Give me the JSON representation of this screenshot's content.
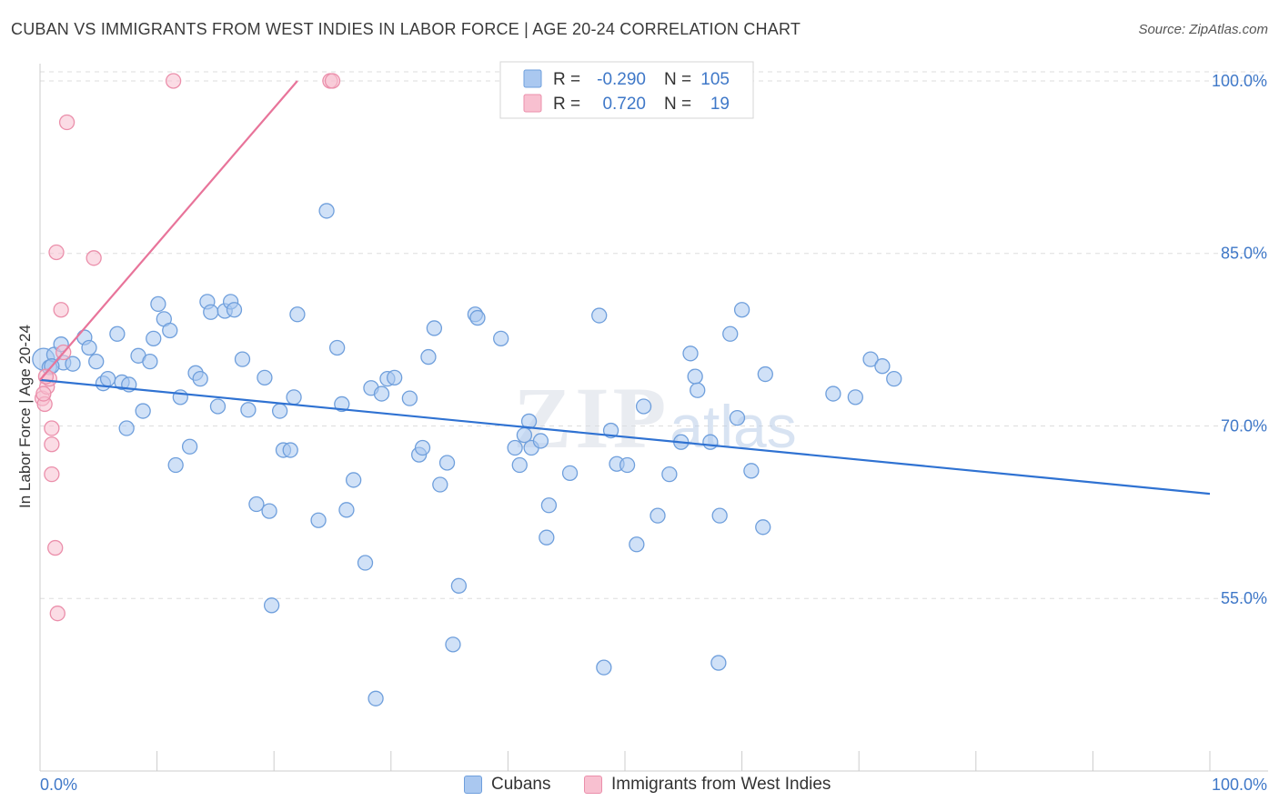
{
  "header": {
    "title": "CUBAN VS IMMIGRANTS FROM WEST INDIES IN LABOR FORCE | AGE 20-24 CORRELATION CHART",
    "source": "Source: ZipAtlas.com"
  },
  "watermark": "ZIPatlas",
  "colors": {
    "blue_fill": "#aac8f0",
    "blue_stroke": "#6f9fdc",
    "blue_line": "#2f72d2",
    "pink_fill": "#f8c0d0",
    "pink_stroke": "#eb8fab",
    "pink_line": "#e8749a",
    "axis_text": "#3f78c8",
    "grid": "#dddddd"
  },
  "legend_stats": [
    {
      "series": "Cubans",
      "r_label": "R =",
      "r_value": "-0.290",
      "n_label": "N =",
      "n_value": "105"
    },
    {
      "series": "Immigrants from West Indies",
      "r_label": "R =",
      "r_value": "0.720",
      "n_label": "N =",
      "n_value": "19"
    }
  ],
  "chart_data": {
    "type": "scatter",
    "title": "CUBAN VS IMMIGRANTS FROM WEST INDIES IN LABOR FORCE | AGE 20-24 CORRELATION CHART",
    "xlabel": "",
    "ylabel": "In Labor Force | Age 20-24",
    "xlim": [
      0,
      100
    ],
    "ylim": [
      40,
      101.5
    ],
    "x_tick_labels": [
      "0.0%",
      "100.0%"
    ],
    "y_ticks": [
      55,
      70,
      85,
      100
    ],
    "y_tick_labels": [
      "55.0%",
      "70.0%",
      "85.0%",
      "100.0%"
    ],
    "series": [
      {
        "name": "Cubans",
        "trendline": {
          "x": [
            0,
            100
          ],
          "y": [
            74.0,
            64.1
          ]
        },
        "points": [
          [
            0.3,
            75.8
          ],
          [
            0.8,
            75.1
          ],
          [
            1.2,
            76.2
          ],
          [
            1.8,
            77.1
          ],
          [
            2.0,
            75.5
          ],
          [
            2.8,
            75.4
          ],
          [
            3.8,
            77.7
          ],
          [
            4.2,
            76.8
          ],
          [
            4.8,
            75.6
          ],
          [
            5.4,
            73.7
          ],
          [
            5.8,
            74.1
          ],
          [
            6.6,
            78.0
          ],
          [
            7.0,
            73.8
          ],
          [
            7.6,
            73.6
          ],
          [
            7.4,
            69.8
          ],
          [
            8.4,
            76.1
          ],
          [
            8.8,
            71.3
          ],
          [
            9.4,
            75.6
          ],
          [
            9.7,
            77.6
          ],
          [
            10.1,
            80.6
          ],
          [
            10.6,
            79.3
          ],
          [
            11.1,
            78.3
          ],
          [
            11.6,
            66.6
          ],
          [
            12.0,
            72.5
          ],
          [
            12.8,
            68.2
          ],
          [
            13.3,
            74.6
          ],
          [
            13.7,
            74.1
          ],
          [
            14.3,
            80.8
          ],
          [
            14.6,
            79.9
          ],
          [
            15.2,
            71.7
          ],
          [
            15.8,
            80.0
          ],
          [
            16.3,
            80.8
          ],
          [
            16.6,
            80.1
          ],
          [
            17.3,
            75.8
          ],
          [
            17.8,
            71.4
          ],
          [
            18.5,
            63.2
          ],
          [
            19.2,
            74.2
          ],
          [
            19.6,
            62.6
          ],
          [
            19.8,
            54.4
          ],
          [
            20.5,
            71.3
          ],
          [
            20.8,
            67.9
          ],
          [
            21.4,
            67.9
          ],
          [
            21.7,
            72.5
          ],
          [
            22.0,
            79.7
          ],
          [
            23.8,
            61.8
          ],
          [
            24.5,
            88.7
          ],
          [
            25.4,
            76.8
          ],
          [
            25.8,
            71.9
          ],
          [
            26.2,
            62.7
          ],
          [
            26.8,
            65.3
          ],
          [
            27.8,
            58.1
          ],
          [
            28.3,
            73.3
          ],
          [
            28.7,
            46.3
          ],
          [
            29.2,
            72.8
          ],
          [
            29.7,
            74.1
          ],
          [
            30.3,
            74.2
          ],
          [
            31.6,
            72.4
          ],
          [
            32.4,
            67.5
          ],
          [
            32.7,
            68.1
          ],
          [
            33.2,
            76.0
          ],
          [
            33.7,
            78.5
          ],
          [
            34.2,
            64.9
          ],
          [
            34.8,
            66.8
          ],
          [
            35.3,
            51.0
          ],
          [
            35.8,
            56.1
          ],
          [
            37.2,
            79.7
          ],
          [
            37.4,
            79.4
          ],
          [
            39.4,
            77.6
          ],
          [
            40.6,
            68.1
          ],
          [
            41.0,
            66.6
          ],
          [
            41.4,
            69.2
          ],
          [
            41.8,
            70.4
          ],
          [
            42.0,
            68.1
          ],
          [
            42.8,
            68.7
          ],
          [
            43.3,
            60.3
          ],
          [
            43.5,
            63.1
          ],
          [
            45.3,
            65.9
          ],
          [
            47.8,
            79.6
          ],
          [
            48.2,
            49.0
          ],
          [
            48.8,
            69.6
          ],
          [
            49.3,
            66.7
          ],
          [
            50.2,
            66.6
          ],
          [
            51.0,
            59.7
          ],
          [
            51.6,
            71.7
          ],
          [
            52.8,
            62.2
          ],
          [
            53.8,
            65.8
          ],
          [
            54.8,
            68.6
          ],
          [
            55.6,
            76.3
          ],
          [
            56.0,
            74.3
          ],
          [
            56.2,
            73.1
          ],
          [
            57.3,
            68.6
          ],
          [
            58.0,
            49.4
          ],
          [
            58.1,
            62.2
          ],
          [
            59.0,
            78.0
          ],
          [
            59.6,
            70.7
          ],
          [
            60.0,
            80.1
          ],
          [
            60.8,
            66.1
          ],
          [
            61.8,
            61.2
          ],
          [
            62.0,
            74.5
          ],
          [
            67.8,
            72.8
          ],
          [
            69.7,
            72.5
          ],
          [
            71.0,
            75.8
          ],
          [
            73.0,
            74.1
          ],
          [
            72.0,
            75.2
          ],
          [
            1.0,
            75.2
          ]
        ]
      },
      {
        "name": "Immigrants from West Indies",
        "trendline": {
          "x": [
            0,
            22.0
          ],
          "y": [
            74.0,
            100.0
          ]
        },
        "points": [
          [
            0.2,
            72.4
          ],
          [
            0.4,
            71.9
          ],
          [
            0.6,
            73.4
          ],
          [
            0.8,
            74.1
          ],
          [
            1.0,
            69.8
          ],
          [
            1.0,
            68.4
          ],
          [
            1.0,
            65.8
          ],
          [
            1.3,
            59.4
          ],
          [
            1.4,
            85.1
          ],
          [
            1.5,
            53.7
          ],
          [
            1.8,
            80.1
          ],
          [
            2.0,
            76.4
          ],
          [
            2.3,
            96.4
          ],
          [
            4.6,
            84.6
          ],
          [
            11.4,
            100.0
          ],
          [
            24.8,
            100.0
          ],
          [
            25.0,
            100.0
          ],
          [
            0.5,
            74.3
          ],
          [
            0.3,
            72.8
          ]
        ]
      }
    ]
  }
}
